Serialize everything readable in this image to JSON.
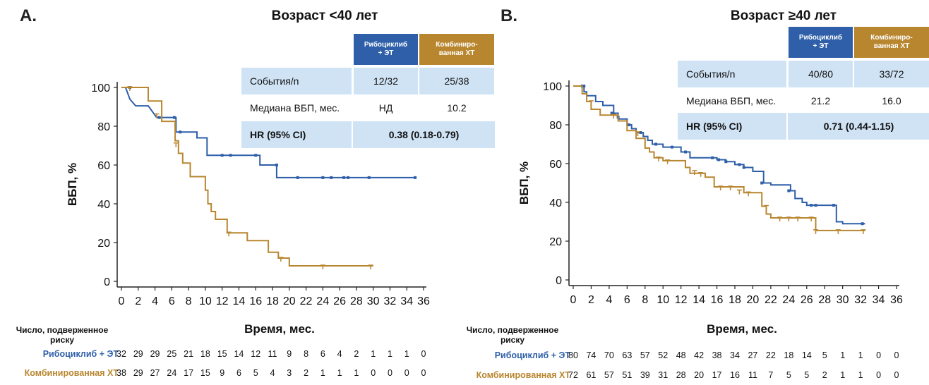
{
  "colors": {
    "ribo": "#2e5fa8",
    "chemo": "#b8862f",
    "header_blue": "#2e5fa8",
    "header_gold": "#b8862f",
    "row_light": "#cfe3f5"
  },
  "chart_data": [
    {
      "type": "line",
      "panel_letter": "A.",
      "title": "Возраст <40 лет",
      "xlabel": "Время, мес.",
      "ylabel": "ВБП, %",
      "xlim": [
        0,
        36
      ],
      "ylim": [
        0,
        100
      ],
      "xticks": [
        0,
        2,
        4,
        6,
        8,
        10,
        12,
        14,
        16,
        18,
        20,
        22,
        24,
        26,
        28,
        30,
        32,
        34,
        36
      ],
      "yticks": [
        0,
        20,
        40,
        60,
        80,
        100
      ],
      "series": [
        {
          "name": "Рибоциклиб + ЭТ",
          "color": "#2e5fa8",
          "steps": [
            [
              0,
              100
            ],
            [
              0.5,
              100
            ],
            [
              1,
              94
            ],
            [
              1.7,
              90.5
            ],
            [
              3.2,
              90.5
            ],
            [
              4.2,
              84.5
            ],
            [
              6.5,
              84.5
            ],
            [
              6.5,
              77
            ],
            [
              9,
              77
            ],
            [
              9,
              74
            ],
            [
              10.2,
              74
            ],
            [
              10.2,
              65
            ],
            [
              16.5,
              65
            ],
            [
              16.5,
              60
            ],
            [
              18.5,
              60
            ],
            [
              18.5,
              53.5
            ],
            [
              35,
              53.5
            ]
          ],
          "censors": [
            [
              1,
              100
            ],
            [
              4.5,
              84.5
            ],
            [
              6.3,
              84.5
            ],
            [
              7,
              77
            ],
            [
              12,
              65
            ],
            [
              13,
              65
            ],
            [
              16,
              65
            ],
            [
              18.5,
              60
            ],
            [
              21,
              53.5
            ],
            [
              24,
              53.5
            ],
            [
              25,
              53.5
            ],
            [
              26.5,
              53.5
            ],
            [
              27,
              53.5
            ],
            [
              29.5,
              53.5
            ],
            [
              35,
              53.5
            ]
          ]
        },
        {
          "name": "Комбинированная ХТ",
          "color": "#b8862f",
          "steps": [
            [
              0,
              100
            ],
            [
              2,
              100
            ],
            [
              3.2,
              100
            ],
            [
              3.2,
              93
            ],
            [
              4.8,
              93
            ],
            [
              4.8,
              82.5
            ],
            [
              6.4,
              82.5
            ],
            [
              6.4,
              72.5
            ],
            [
              6.8,
              72.5
            ],
            [
              6.8,
              66
            ],
            [
              7.3,
              66
            ],
            [
              7.3,
              61
            ],
            [
              8.2,
              61
            ],
            [
              8.2,
              54
            ],
            [
              10,
              54
            ],
            [
              10,
              47
            ],
            [
              10.3,
              47
            ],
            [
              10.3,
              40
            ],
            [
              10.7,
              40
            ],
            [
              10.7,
              36
            ],
            [
              11.2,
              36
            ],
            [
              11.2,
              32
            ],
            [
              12.6,
              32
            ],
            [
              12.6,
              25
            ],
            [
              15,
              25
            ],
            [
              15,
              21
            ],
            [
              17.5,
              21
            ],
            [
              17.5,
              15
            ],
            [
              18.7,
              15
            ],
            [
              18.7,
              12
            ],
            [
              20,
              12
            ],
            [
              20,
              8
            ],
            [
              30,
              8
            ]
          ],
          "censors": [
            [
              1,
              100
            ],
            [
              4.2,
              86
            ],
            [
              6.5,
              71
            ],
            [
              12.8,
              25
            ],
            [
              19,
              12
            ],
            [
              24,
              8
            ],
            [
              29.7,
              8
            ]
          ]
        }
      ],
      "table": {
        "col_headers": [
          "Рибоциклиб + ЭТ",
          "Комбиниро-ванная ХТ"
        ],
        "rows": [
          {
            "label": "События/n",
            "values": [
              "12/32",
              "25/38"
            ]
          },
          {
            "label": "Медиана ВБП, мес.",
            "values": [
              "НД",
              "10.2"
            ]
          },
          {
            "label": "HR (95% CI)",
            "merged": "0.38 (0.18-0.79)"
          }
        ]
      },
      "risk_table": {
        "header": [
          "Число, подверженное",
          "риску"
        ],
        "rows": [
          {
            "name": "Рибоциклиб + ЭТ",
            "values": [
              32,
              29,
              29,
              25,
              21,
              18,
              15,
              14,
              12,
              11,
              9,
              8,
              6,
              4,
              2,
              1,
              1,
              1,
              0
            ]
          },
          {
            "name": "Комбинированная ХТ",
            "values": [
              38,
              29,
              27,
              24,
              17,
              15,
              9,
              6,
              5,
              4,
              3,
              2,
              1,
              1,
              1,
              0,
              0,
              0,
              0
            ]
          }
        ]
      }
    },
    {
      "type": "line",
      "panel_letter": "B.",
      "title": "Возраст ≥40 лет",
      "xlabel": "Время, мес.",
      "ylabel": "ВБП, %",
      "xlim": [
        0,
        36
      ],
      "ylim": [
        0,
        100
      ],
      "xticks": [
        0,
        2,
        4,
        6,
        8,
        10,
        12,
        14,
        16,
        18,
        20,
        22,
        24,
        26,
        28,
        30,
        32,
        34,
        36
      ],
      "yticks": [
        0,
        20,
        40,
        60,
        80,
        100
      ],
      "series": [
        {
          "name": "Рибоциклиб + ЭТ",
          "color": "#2e5fa8",
          "steps": [
            [
              0,
              100
            ],
            [
              1.2,
              100
            ],
            [
              1.2,
              97
            ],
            [
              1.5,
              97
            ],
            [
              1.5,
              95
            ],
            [
              2.5,
              95
            ],
            [
              2.5,
              92
            ],
            [
              3.3,
              92
            ],
            [
              3.3,
              90
            ],
            [
              4.5,
              90
            ],
            [
              4.5,
              86
            ],
            [
              5,
              86
            ],
            [
              5,
              83
            ],
            [
              6,
              83
            ],
            [
              6,
              80
            ],
            [
              6.5,
              80
            ],
            [
              6.5,
              78
            ],
            [
              7,
              78
            ],
            [
              7,
              76
            ],
            [
              7.8,
              76
            ],
            [
              7.8,
              74
            ],
            [
              8.3,
              74
            ],
            [
              8.3,
              72
            ],
            [
              8.8,
              72
            ],
            [
              8.8,
              70
            ],
            [
              10,
              70
            ],
            [
              10,
              68.5
            ],
            [
              12,
              68.5
            ],
            [
              12,
              66
            ],
            [
              13,
              66
            ],
            [
              13,
              63
            ],
            [
              16,
              63
            ],
            [
              16,
              62
            ],
            [
              17,
              62
            ],
            [
              17,
              61
            ],
            [
              18,
              61
            ],
            [
              18,
              59.5
            ],
            [
              19,
              59.5
            ],
            [
              19,
              58
            ],
            [
              20,
              58
            ],
            [
              20,
              56
            ],
            [
              21.2,
              56
            ],
            [
              21.2,
              50
            ],
            [
              22,
              50
            ],
            [
              22,
              49
            ],
            [
              24.2,
              49
            ],
            [
              24.2,
              46
            ],
            [
              24.7,
              46
            ],
            [
              24.7,
              42
            ],
            [
              25.5,
              42
            ],
            [
              25.5,
              40
            ],
            [
              26,
              40
            ],
            [
              26,
              38.5
            ],
            [
              29.3,
              38.5
            ],
            [
              29.3,
              30
            ],
            [
              30,
              30
            ],
            [
              30,
              29
            ],
            [
              32.5,
              29
            ]
          ],
          "censors": [
            [
              1,
              100
            ],
            [
              1.2,
              100
            ],
            [
              4.3,
              86
            ],
            [
              5,
              84
            ],
            [
              6.2,
              80
            ],
            [
              7.5,
              76
            ],
            [
              9.2,
              70
            ],
            [
              11,
              68.5
            ],
            [
              12.5,
              66
            ],
            [
              15.5,
              63
            ],
            [
              16.2,
              62
            ],
            [
              17,
              61
            ],
            [
              18.5,
              59.5
            ],
            [
              19,
              58
            ],
            [
              21,
              50
            ],
            [
              24,
              46
            ],
            [
              26.5,
              38.5
            ],
            [
              27,
              38.5
            ],
            [
              29,
              38.5
            ],
            [
              32.2,
              29
            ]
          ]
        },
        {
          "name": "Комбинированная ХТ",
          "color": "#b8862f",
          "steps": [
            [
              0,
              100
            ],
            [
              1,
              100
            ],
            [
              1,
              96
            ],
            [
              1.5,
              96
            ],
            [
              1.5,
              92
            ],
            [
              2,
              92
            ],
            [
              2,
              88
            ],
            [
              3,
              88
            ],
            [
              3,
              85
            ],
            [
              5,
              85
            ],
            [
              5,
              82
            ],
            [
              6,
              82
            ],
            [
              6,
              77
            ],
            [
              7,
              77
            ],
            [
              7,
              73
            ],
            [
              8,
              73
            ],
            [
              8,
              68
            ],
            [
              8.5,
              68
            ],
            [
              8.5,
              66
            ],
            [
              9,
              66
            ],
            [
              9,
              63
            ],
            [
              10,
              63
            ],
            [
              10,
              61.5
            ],
            [
              12.5,
              61.5
            ],
            [
              12.5,
              58
            ],
            [
              13,
              58
            ],
            [
              13,
              55
            ],
            [
              14.7,
              55
            ],
            [
              14.7,
              53
            ],
            [
              15.7,
              53
            ],
            [
              15.7,
              48
            ],
            [
              19,
              48
            ],
            [
              19,
              45
            ],
            [
              21,
              45
            ],
            [
              21,
              38
            ],
            [
              21.5,
              38
            ],
            [
              21.5,
              34
            ],
            [
              22,
              34
            ],
            [
              22,
              32
            ],
            [
              27,
              32
            ],
            [
              27,
              25.5
            ],
            [
              32.5,
              25.5
            ]
          ],
          "censors": [
            [
              2,
              92
            ],
            [
              4.5,
              85
            ],
            [
              7.2,
              76
            ],
            [
              9.5,
              63
            ],
            [
              10.5,
              61.5
            ],
            [
              13.5,
              56
            ],
            [
              14.2,
              55
            ],
            [
              16.4,
              48
            ],
            [
              17.5,
              48
            ],
            [
              18.5,
              46
            ],
            [
              19.5,
              45
            ],
            [
              21.5,
              38
            ],
            [
              23,
              32
            ],
            [
              24,
              32
            ],
            [
              25,
              32
            ],
            [
              26.5,
              32
            ],
            [
              27,
              25.5
            ],
            [
              29.5,
              25.5
            ],
            [
              32.3,
              25.5
            ]
          ]
        }
      ],
      "table": {
        "col_headers": [
          "Рибоциклиб + ЭТ",
          "Комбиниро-ванная ХТ"
        ],
        "rows": [
          {
            "label": "События/n",
            "values": [
              "40/80",
              "33/72"
            ]
          },
          {
            "label": "Медиана ВБП, мес.",
            "values": [
              "21.2",
              "16.0"
            ]
          },
          {
            "label": "HR (95% CI)",
            "merged": "0.71 (0.44-1.15)"
          }
        ]
      },
      "risk_table": {
        "header": [
          "Число, подверженное",
          "риску"
        ],
        "rows": [
          {
            "name": "Рибоциклиб + ЭТ",
            "values": [
              80,
              74,
              70,
              63,
              57,
              52,
              48,
              42,
              38,
              34,
              27,
              22,
              18,
              14,
              5,
              1,
              1,
              0,
              0
            ]
          },
          {
            "name": "Комбинированная ХТ",
            "values": [
              72,
              61,
              57,
              51,
              39,
              31,
              28,
              20,
              17,
              16,
              11,
              7,
              5,
              5,
              2,
              1,
              1,
              0,
              0
            ]
          }
        ]
      }
    }
  ]
}
